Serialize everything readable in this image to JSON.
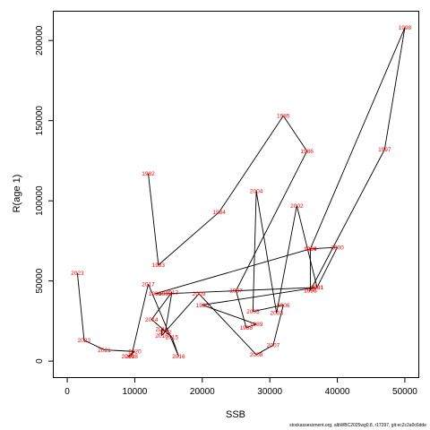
{
  "chart_data": {
    "type": "scatter",
    "title": "",
    "xlabel": "SSB",
    "ylabel": "R(age 1)",
    "xlim": [
      -2000,
      52000
    ],
    "ylim": [
      -10000,
      218000
    ],
    "x_ticks": [
      0,
      10000,
      20000,
      30000,
      40000,
      50000
    ],
    "y_ticks": [
      0,
      50000,
      100000,
      150000,
      200000
    ],
    "grid": false,
    "legend": "none",
    "line_color": "#000000",
    "label_color": "#ff0000",
    "points": [
      {
        "label": "1982",
        "x": 12000,
        "y": 117000
      },
      {
        "label": "1983",
        "x": 13500,
        "y": 60000
      },
      {
        "label": "1984",
        "x": 22500,
        "y": 93000
      },
      {
        "label": "1985",
        "x": 32000,
        "y": 153000
      },
      {
        "label": "1986",
        "x": 35500,
        "y": 131000
      },
      {
        "label": "1987",
        "x": 25000,
        "y": 44000
      },
      {
        "label": "1988",
        "x": 26500,
        "y": 21000
      },
      {
        "label": "1989",
        "x": 28000,
        "y": 23000
      },
      {
        "label": "1990",
        "x": 20000,
        "y": 35000
      },
      {
        "label": "1991",
        "x": 37000,
        "y": 46000
      },
      {
        "label": "1992",
        "x": 14500,
        "y": 42000
      },
      {
        "label": "1993",
        "x": 13000,
        "y": 42000
      },
      {
        "label": "1994",
        "x": 36000,
        "y": 70000
      },
      {
        "label": "1995",
        "x": 36000,
        "y": 44000
      },
      {
        "label": "1996",
        "x": 36000,
        "y": 44000
      },
      {
        "label": "1997",
        "x": 47000,
        "y": 132000
      },
      {
        "label": "1998",
        "x": 50000,
        "y": 208000
      },
      {
        "label": "1999",
        "x": 36000,
        "y": 70000
      },
      {
        "label": "2000",
        "x": 40000,
        "y": 71000
      },
      {
        "label": "2001",
        "x": 37000,
        "y": 46000
      },
      {
        "label": "2002",
        "x": 34000,
        "y": 97000
      },
      {
        "label": "2003",
        "x": 31000,
        "y": 30000
      },
      {
        "label": "2004",
        "x": 28000,
        "y": 106000
      },
      {
        "label": "2005",
        "x": 27500,
        "y": 31000
      },
      {
        "label": "2006",
        "x": 32000,
        "y": 35000
      },
      {
        "label": "2007",
        "x": 30500,
        "y": 10000
      },
      {
        "label": "2008",
        "x": 28000,
        "y": 4000
      },
      {
        "label": "2009",
        "x": 19500,
        "y": 42000
      },
      {
        "label": "2010",
        "x": 14000,
        "y": 16000
      },
      {
        "label": "2011",
        "x": 14000,
        "y": 20000
      },
      {
        "label": "2012",
        "x": 14500,
        "y": 18000
      },
      {
        "label": "2013",
        "x": 15500,
        "y": 43000
      },
      {
        "label": "2014",
        "x": 12500,
        "y": 26000
      },
      {
        "label": "2015",
        "x": 15500,
        "y": 15000
      },
      {
        "label": "2016",
        "x": 16500,
        "y": 3000
      },
      {
        "label": "2017",
        "x": 12000,
        "y": 48000
      },
      {
        "label": "2018",
        "x": 9500,
        "y": 3000
      },
      {
        "label": "2019",
        "x": 9000,
        "y": 3000
      },
      {
        "label": "2020",
        "x": 10000,
        "y": 6000
      },
      {
        "label": "2021",
        "x": 5500,
        "y": 7000
      },
      {
        "label": "2022",
        "x": 2500,
        "y": 13000
      },
      {
        "label": "2023",
        "x": 1500,
        "y": 55000
      }
    ]
  },
  "footer_text": "stockassessment.org, albWBC2025wg0.8, r17397, git:ec2c2a0c6dde"
}
